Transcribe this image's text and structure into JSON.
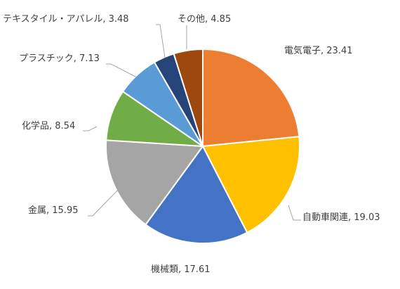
{
  "chart_data": {
    "type": "pie",
    "title": "",
    "start_angle_deg": 0,
    "direction": "clockwise",
    "slices": [
      {
        "label": "電気電子",
        "value": 23.41,
        "value_text": "23.41",
        "color": "#ed7d31"
      },
      {
        "label": "自動車関連",
        "value": 19.03,
        "value_text": "19.03",
        "color": "#ffc000"
      },
      {
        "label": "機械類",
        "value": 17.61,
        "value_text": "17.61",
        "color": "#4472c4"
      },
      {
        "label": "金属",
        "value": 15.95,
        "value_text": "15.95",
        "color": "#a5a5a5"
      },
      {
        "label": "化学品",
        "value": 8.54,
        "value_text": "8.54",
        "color": "#70ad47"
      },
      {
        "label": "プラスチック",
        "value": 7.13,
        "value_text": "7.13",
        "color": "#5b9bd5"
      },
      {
        "label": "テキスタイル・アパレル",
        "value": 3.48,
        "value_text": "3.48",
        "color": "#264478"
      },
      {
        "label": "その他",
        "value": 4.85,
        "value_text": "4.85",
        "color": "#9e480e"
      }
    ]
  }
}
